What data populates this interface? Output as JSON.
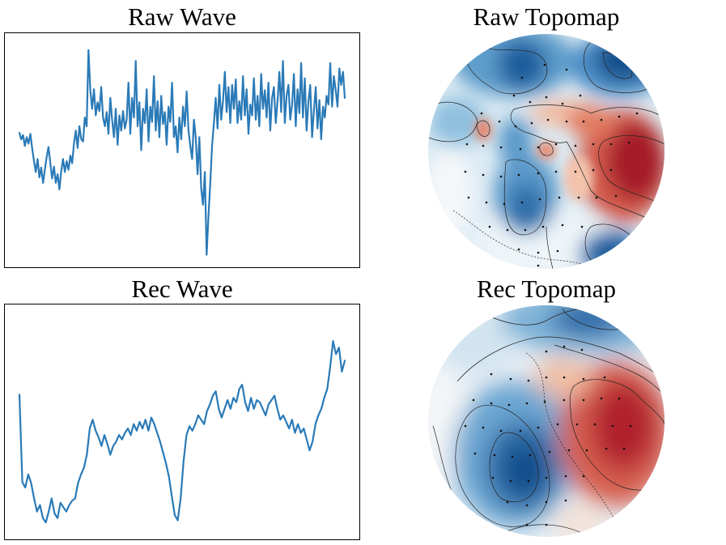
{
  "chart_data": [
    {
      "type": "line",
      "title": "Raw Wave",
      "xlabel": "",
      "ylabel": "",
      "axes_ticks": "none",
      "grid": false,
      "color": "#2a7ab7",
      "ylim": [
        -1.0,
        1.0
      ],
      "values": [
        0.16,
        0.1,
        0.14,
        0.04,
        0.12,
        0.06,
        0.15,
        0.02,
        -0.1,
        -0.2,
        -0.08,
        -0.25,
        -0.16,
        -0.3,
        -0.18,
        -0.06,
        0.03,
        -0.12,
        -0.26,
        -0.15,
        -0.3,
        -0.22,
        -0.36,
        -0.19,
        -0.08,
        -0.2,
        -0.1,
        -0.18,
        -0.05,
        -0.12,
        0.06,
        0.18,
        0.02,
        0.22,
        0.1,
        0.08,
        0.3,
        0.22,
        0.92,
        0.55,
        0.38,
        0.56,
        0.32,
        0.44,
        0.36,
        0.58,
        0.3,
        0.22,
        0.35,
        0.15,
        0.48,
        0.28,
        0.12,
        0.38,
        0.05,
        0.32,
        0.18,
        0.36,
        0.2,
        0.28,
        0.62,
        0.15,
        0.48,
        0.3,
        0.82,
        0.22,
        0.44,
        0.0,
        0.38,
        0.25,
        0.56,
        0.08,
        0.4,
        0.26,
        0.68,
        0.18,
        0.45,
        0.12,
        0.5,
        0.24,
        0.35,
        0.05,
        0.4,
        0.26,
        0.62,
        0.12,
        0.22,
        -0.02,
        0.3,
        0.1,
        0.4,
        0.22,
        0.54,
        0.18,
        0.04,
        -0.08,
        0.28,
        0.12,
        -0.22,
        0.12,
        -0.35,
        -0.5,
        -0.2,
        -0.96,
        -0.6,
        -0.3,
        0.05,
        0.25,
        0.48,
        0.2,
        0.6,
        0.28,
        0.45,
        0.72,
        0.35,
        0.58,
        0.25,
        0.6,
        0.38,
        0.65,
        0.25,
        0.45,
        0.28,
        0.68,
        0.32,
        0.56,
        0.15,
        0.42,
        0.32,
        0.66,
        0.28,
        0.5,
        0.22,
        0.7,
        0.38,
        0.55,
        0.3,
        0.62,
        0.18,
        0.48,
        0.58,
        0.25,
        0.45,
        0.72,
        0.35,
        0.82,
        0.25,
        0.5,
        0.6,
        0.28,
        0.42,
        0.7,
        0.22,
        0.56,
        0.34,
        0.8,
        0.3,
        0.66,
        0.18,
        0.45,
        0.6,
        0.12,
        0.36,
        0.58,
        0.2,
        0.46,
        0.1,
        0.4,
        0.3,
        0.5,
        0.42,
        0.8,
        0.4,
        0.68,
        0.55,
        0.4,
        0.75,
        0.6,
        0.72,
        0.48
      ]
    },
    {
      "type": "heatmap",
      "title": "Raw Topomap",
      "colormap": "RdBu_r",
      "shape": "circle"
    },
    {
      "type": "line",
      "title": "Rec Wave",
      "xlabel": "",
      "ylabel": "",
      "axes_ticks": "none",
      "grid": false,
      "color": "#2a7ab7",
      "ylim": [
        -1.0,
        1.0
      ],
      "values": [
        0.25,
        -0.55,
        -0.6,
        -0.48,
        -0.56,
        -0.7,
        -0.82,
        -0.76,
        -0.88,
        -0.92,
        -0.82,
        -0.7,
        -0.84,
        -0.88,
        -0.74,
        -0.78,
        -0.82,
        -0.76,
        -0.72,
        -0.7,
        -0.56,
        -0.48,
        -0.42,
        -0.3,
        -0.06,
        0.02,
        -0.08,
        -0.14,
        -0.22,
        -0.12,
        -0.2,
        -0.3,
        -0.22,
        -0.18,
        -0.12,
        -0.16,
        -0.1,
        -0.06,
        -0.12,
        -0.02,
        -0.08,
        0.0,
        -0.06,
        0.02,
        -0.08,
        0.04,
        -0.02,
        -0.1,
        -0.18,
        -0.28,
        -0.38,
        -0.5,
        -0.68,
        -0.85,
        -0.9,
        -0.7,
        -0.36,
        -0.12,
        -0.04,
        -0.08,
        -0.02,
        0.06,
        0.02,
        -0.02,
        0.1,
        0.16,
        0.24,
        0.28,
        0.12,
        0.04,
        0.12,
        0.2,
        0.12,
        0.22,
        0.18,
        0.3,
        0.34,
        0.18,
        0.1,
        0.22,
        0.12,
        0.2,
        0.18,
        0.12,
        0.06,
        0.16,
        0.2,
        0.24,
        0.12,
        0.02,
        0.06,
        0.0,
        -0.06,
        0.02,
        -0.1,
        -0.02,
        -0.1,
        -0.06,
        -0.16,
        -0.26,
        -0.18,
        -0.02,
        0.06,
        0.12,
        0.22,
        0.3,
        0.5,
        0.74,
        0.62,
        0.68,
        0.46,
        0.56
      ]
    },
    {
      "type": "heatmap",
      "title": "Rec Topomap",
      "colormap": "RdBu_r",
      "shape": "circle"
    }
  ]
}
